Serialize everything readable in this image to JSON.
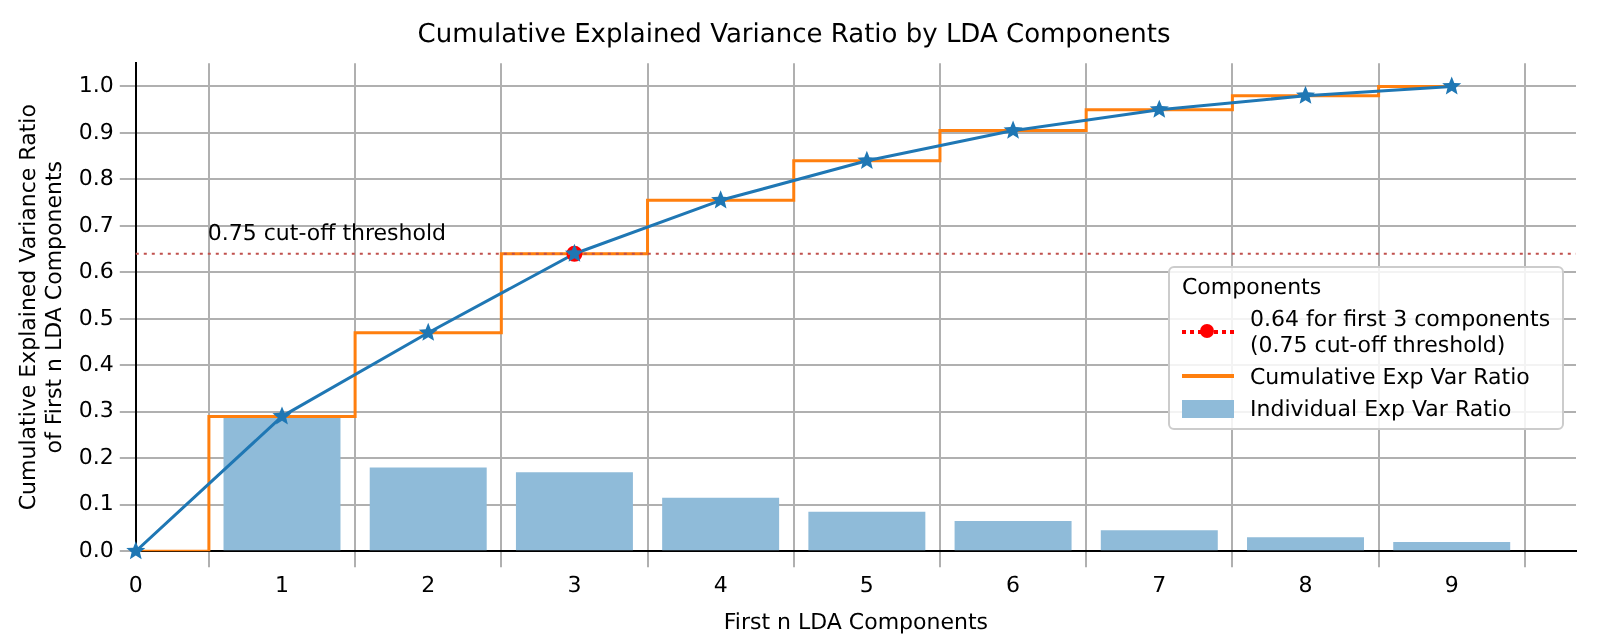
{
  "chart_data": {
    "type": "bar",
    "title": "Cumulative Explained Variance Ratio by LDA Components",
    "xlabel": "First n LDA Components",
    "ylabel": "Cumulative Explained Variance Ratio\nof First n LDA Components",
    "legend_title": "Components",
    "legend": "right",
    "grid": true,
    "xlim": [
      0,
      9.85
    ],
    "xticks": [
      0,
      1,
      2,
      3,
      4,
      5,
      6,
      7,
      8,
      9
    ],
    "ylim": [
      0,
      1.05
    ],
    "yticks": [
      {
        "value": 0,
        "label": "0.0"
      },
      0.1,
      0.2,
      0.3,
      0.4,
      0.5,
      0.6,
      0.7,
      0.8,
      0.9,
      {
        "value": 1,
        "label": "1.0"
      }
    ],
    "series": [
      {
        "type": "scatter",
        "name": "0.64 for first 3 components\n(0.75 cut-off threshold)",
        "color": "#ff0000",
        "x": [
          3
        ],
        "values": [
          0.64
        ],
        "marker": "circle",
        "line_style": "dotted"
      },
      {
        "type": "step",
        "name": "Cumulative Exp Var Ratio",
        "color": "#ff7f0e",
        "x": [
          0,
          1,
          2,
          3,
          4,
          5,
          6,
          7,
          8,
          9
        ],
        "values": [
          0,
          0.29,
          0.47,
          0.64,
          0.755,
          0.84,
          0.905,
          0.95,
          0.98,
          1.0
        ],
        "marker": "none"
      },
      {
        "name": "Individual Exp Var Ratio",
        "color": "#8fbbd9",
        "x": [
          1,
          2,
          3,
          4,
          5,
          6,
          7,
          8,
          9
        ],
        "values": [
          0.29,
          0.18,
          0.17,
          0.115,
          0.085,
          0.065,
          0.045,
          0.03,
          0.02
        ]
      },
      {
        "type": "line",
        "color": "#1f77b4",
        "x": [
          0,
          1,
          2,
          3,
          4,
          5,
          6,
          7,
          8,
          9
        ],
        "values": [
          0,
          0.29,
          0.47,
          0.64,
          0.755,
          0.84,
          0.905,
          0.95,
          0.98,
          1.0
        ],
        "marker": "star"
      }
    ],
    "ref_lines": [
      {
        "axis": "y",
        "value": 0.64,
        "label": "0.75 cut-off threshold",
        "color": "#c0504d",
        "line_style": "dotted"
      }
    ]
  }
}
